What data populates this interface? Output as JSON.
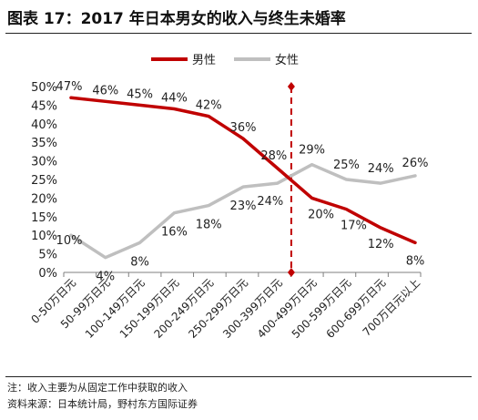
{
  "header": {
    "title": "图表 17：2017 年日本男女的收入与终生未婚率"
  },
  "footer": {
    "note": "注：收入主要为从固定工作中获取的收入",
    "source": "资料来源：日本统计局，野村东方国际证券"
  },
  "colors": {
    "male": "#c00000",
    "female": "#bfbfbf",
    "axis": "#7f7f7f",
    "marker_line": "#c00000"
  },
  "chart_data": {
    "type": "line",
    "categories": [
      "0-50万日元",
      "50-99万日元",
      "100-149万日元",
      "150-199万日元",
      "200-249万日元",
      "250-299万日元",
      "300-399万日元",
      "400-499万日元",
      "500-599万日元",
      "600-699万日元",
      "700万日元以上"
    ],
    "series": [
      {
        "name": "男性",
        "values": [
          47,
          46,
          45,
          44,
          42,
          36,
          28,
          20,
          17,
          12,
          8
        ],
        "labels": [
          "47%",
          "46%",
          "45%",
          "44%",
          "42%",
          "36%",
          "28%",
          "20%",
          "17%",
          "12%",
          "8%"
        ]
      },
      {
        "name": "女性",
        "values": [
          10,
          4,
          8,
          16,
          18,
          23,
          24,
          29,
          25,
          24,
          26
        ],
        "labels": [
          "10%",
          "4%",
          "8%",
          "16%",
          "18%",
          "23%",
          "24%",
          "29%",
          "25%",
          "24%",
          "26%"
        ]
      }
    ],
    "ylim": [
      0,
      50
    ],
    "yticks": [
      "0%",
      "5%",
      "10%",
      "15%",
      "20%",
      "25%",
      "30%",
      "35%",
      "40%",
      "45%",
      "50%"
    ],
    "legend": "top",
    "grid": false
  }
}
